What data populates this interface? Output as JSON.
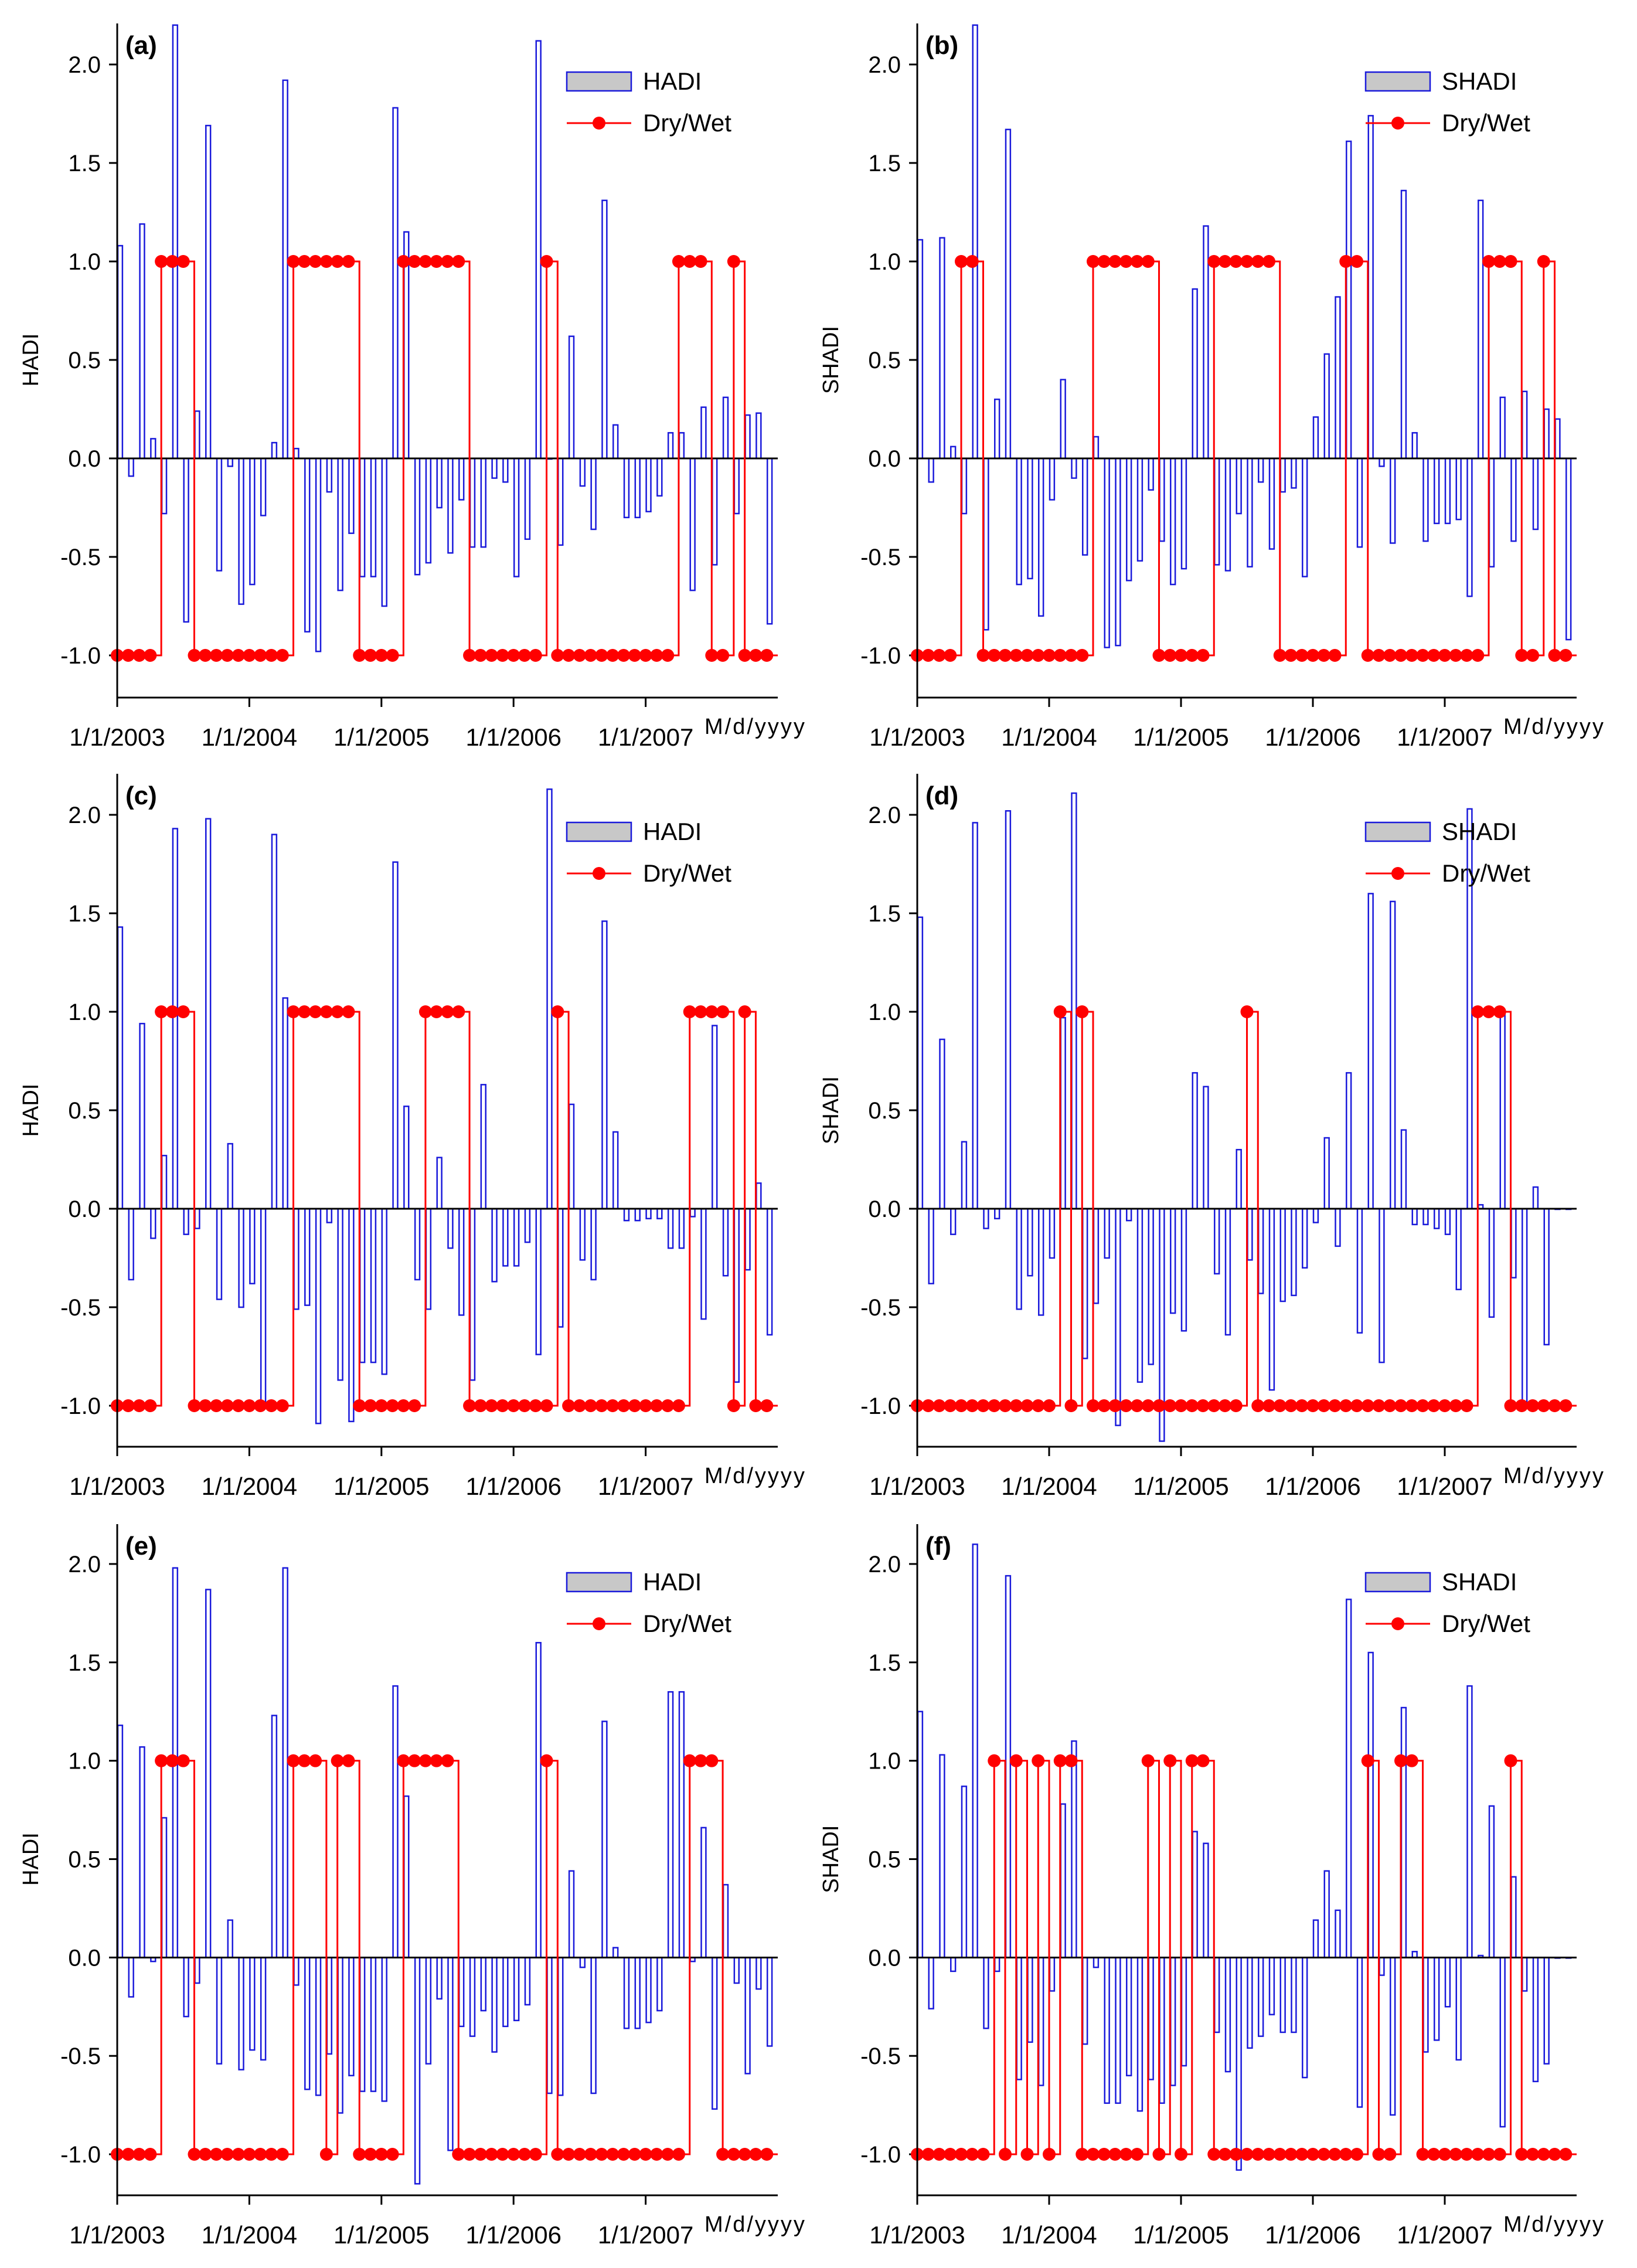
{
  "x_tick_labels": [
    "1/1/2003",
    "1/1/2004",
    "1/1/2005",
    "1/1/2006",
    "1/1/2007"
  ],
  "x_axis_unit": "M/d/yyyy",
  "y_tick_labels": [
    "2.0",
    "1.5",
    "1.0",
    "0.5",
    "0.0",
    "-0.5",
    "-1.0"
  ],
  "colors": {
    "bar_stroke": "#1a1adb",
    "bar_fill": "#ffffff",
    "legend_swatch_fill": "#c8c8c8",
    "drywet": "#ff0000",
    "axis": "#000000"
  },
  "chart_data": [
    {
      "panel": "(a)",
      "type": "bar",
      "ylabel": "HADI",
      "ylim": [
        -1.2,
        2.2
      ],
      "legend": {
        "bar": "HADI",
        "line": "Dry/Wet",
        "placement": "top-right"
      },
      "x": "monthly, Jan 2003 - Dec 2007",
      "values": [
        1.08,
        -0.09,
        1.19,
        0.1,
        -0.28,
        2.2,
        -0.83,
        0.24,
        1.69,
        -0.57,
        -0.04,
        -0.74,
        -0.64,
        -0.29,
        0.08,
        1.92,
        0.05,
        -0.88,
        -0.98,
        -0.17,
        -0.67,
        -0.38,
        -0.6,
        -0.6,
        -0.75,
        1.78,
        1.15,
        -0.59,
        -0.53,
        -0.25,
        -0.48,
        -0.21,
        -0.45,
        -0.45,
        -0.1,
        -0.12,
        -0.6,
        -0.41,
        2.12,
        0.0,
        -0.44,
        0.62,
        -0.14,
        -0.36,
        1.31,
        0.17,
        -0.3,
        -0.3,
        -0.27,
        -0.19,
        0.13,
        0.13,
        -0.67,
        0.26,
        -0.54,
        0.31,
        -0.28,
        0.22,
        0.23,
        -0.84
      ],
      "drywet": [
        -1,
        -1,
        -1,
        -1,
        1,
        1,
        1,
        -1,
        -1,
        -1,
        -1,
        -1,
        -1,
        -1,
        -1,
        -1,
        1,
        1,
        1,
        1,
        1,
        1,
        -1,
        -1,
        -1,
        -1,
        1,
        1,
        1,
        1,
        1,
        1,
        -1,
        -1,
        -1,
        -1,
        -1,
        -1,
        -1,
        1,
        -1,
        -1,
        -1,
        -1,
        -1,
        -1,
        -1,
        -1,
        -1,
        -1,
        -1,
        1,
        1,
        1,
        -1,
        -1,
        1,
        -1,
        -1,
        -1
      ]
    },
    {
      "panel": "(b)",
      "type": "bar",
      "ylabel": "SHADI",
      "ylim": [
        -1.2,
        2.2
      ],
      "legend": {
        "bar": "SHADI",
        "line": "Dry/Wet",
        "placement": "top-right"
      },
      "x": "monthly, Jan 2003 - Dec 2007",
      "values": [
        1.11,
        -0.12,
        1.12,
        0.06,
        -0.28,
        2.2,
        -0.87,
        0.3,
        1.67,
        -0.64,
        -0.61,
        -0.8,
        -0.21,
        0.4,
        -0.1,
        -0.49,
        0.11,
        -0.96,
        -0.95,
        -0.62,
        -0.52,
        -0.16,
        -0.42,
        -0.64,
        -0.56,
        0.86,
        1.18,
        -0.54,
        -0.57,
        -0.28,
        -0.55,
        -0.12,
        -0.46,
        -0.17,
        -0.15,
        -0.6,
        0.21,
        0.53,
        0.82,
        1.61,
        -0.45,
        1.74,
        -0.04,
        -0.43,
        1.36,
        0.13,
        -0.42,
        -0.33,
        -0.33,
        -0.31,
        -0.7,
        1.31,
        -0.55,
        0.31,
        -0.42,
        0.34,
        -0.36,
        0.25,
        0.2,
        -0.92
      ],
      "drywet": [
        -1,
        -1,
        -1,
        -1,
        1,
        1,
        -1,
        -1,
        -1,
        -1,
        -1,
        -1,
        -1,
        -1,
        -1,
        -1,
        1,
        1,
        1,
        1,
        1,
        1,
        -1,
        -1,
        -1,
        -1,
        -1,
        1,
        1,
        1,
        1,
        1,
        1,
        -1,
        -1,
        -1,
        -1,
        -1,
        -1,
        1,
        1,
        -1,
        -1,
        -1,
        -1,
        -1,
        -1,
        -1,
        -1,
        -1,
        -1,
        -1,
        1,
        1,
        1,
        -1,
        -1,
        1,
        -1,
        -1
      ]
    },
    {
      "panel": "(c)",
      "type": "bar",
      "ylabel": "HADI",
      "ylim": [
        -1.2,
        2.2
      ],
      "legend": {
        "bar": "HADI",
        "line": "Dry/Wet",
        "placement": "top-right"
      },
      "x": "monthly, Jan 2003 - Dec 2007",
      "values": [
        1.43,
        -0.36,
        0.94,
        -0.15,
        0.27,
        1.93,
        -0.13,
        -0.1,
        1.98,
        -0.46,
        0.33,
        -0.5,
        -0.38,
        -0.99,
        1.9,
        1.07,
        -0.51,
        -0.49,
        -1.09,
        -0.07,
        -0.87,
        -1.08,
        -0.78,
        -0.78,
        -0.84,
        1.76,
        0.52,
        -0.36,
        -0.51,
        0.26,
        -0.2,
        -0.54,
        -0.87,
        0.63,
        -0.37,
        -0.29,
        -0.29,
        -0.17,
        -0.74,
        2.13,
        -0.6,
        0.53,
        -0.26,
        -0.36,
        1.46,
        0.39,
        -0.06,
        -0.06,
        -0.05,
        -0.05,
        -0.2,
        -0.2,
        -0.04,
        -0.56,
        0.93,
        -0.34,
        -0.88,
        -0.31,
        0.13,
        -0.64
      ],
      "drywet": [
        -1,
        -1,
        -1,
        -1,
        1,
        1,
        1,
        -1,
        -1,
        -1,
        -1,
        -1,
        -1,
        -1,
        -1,
        -1,
        1,
        1,
        1,
        1,
        1,
        1,
        -1,
        -1,
        -1,
        -1,
        -1,
        -1,
        1,
        1,
        1,
        1,
        -1,
        -1,
        -1,
        -1,
        -1,
        -1,
        -1,
        -1,
        1,
        -1,
        -1,
        -1,
        -1,
        -1,
        -1,
        -1,
        -1,
        -1,
        -1,
        -1,
        1,
        1,
        1,
        1,
        -1,
        1,
        -1,
        -1
      ]
    },
    {
      "panel": "(d)",
      "type": "bar",
      "ylabel": "SHADI",
      "ylim": [
        -1.2,
        2.2
      ],
      "legend": {
        "bar": "SHADI",
        "line": "Dry/Wet",
        "placement": "top-right"
      },
      "x": "monthly, Jan 2003 - Dec 2007",
      "values": [
        1.48,
        -0.38,
        0.86,
        -0.13,
        0.34,
        1.96,
        -0.1,
        -0.05,
        2.02,
        -0.51,
        -0.34,
        -0.54,
        -0.25,
        0.97,
        2.11,
        -0.76,
        -0.48,
        -0.25,
        -1.1,
        -0.06,
        -0.88,
        -0.79,
        -1.18,
        -0.53,
        -0.62,
        0.69,
        0.62,
        -0.33,
        -0.64,
        0.3,
        -0.26,
        -0.43,
        -0.92,
        -0.47,
        -0.44,
        -0.3,
        -0.07,
        0.36,
        -0.19,
        0.69,
        -0.63,
        1.6,
        -0.78,
        1.56,
        0.4,
        -0.08,
        -0.08,
        -0.1,
        -0.13,
        -0.41,
        2.03,
        0.02,
        -0.55,
        1.0,
        -0.35,
        -0.98,
        0.11,
        -0.69,
        0.0,
        0.0
      ],
      "drywet": [
        -1,
        -1,
        -1,
        -1,
        -1,
        -1,
        -1,
        -1,
        -1,
        -1,
        -1,
        -1,
        -1,
        1,
        -1,
        1,
        -1,
        -1,
        -1,
        -1,
        -1,
        -1,
        -1,
        -1,
        -1,
        -1,
        -1,
        -1,
        -1,
        -1,
        1,
        -1,
        -1,
        -1,
        -1,
        -1,
        -1,
        -1,
        -1,
        -1,
        -1,
        -1,
        -1,
        -1,
        -1,
        -1,
        -1,
        -1,
        -1,
        -1,
        -1,
        1,
        1,
        1,
        -1,
        -1,
        -1,
        -1,
        -1,
        -1
      ]
    },
    {
      "panel": "(e)",
      "type": "bar",
      "ylabel": "HADI",
      "ylim": [
        -1.2,
        2.2
      ],
      "legend": {
        "bar": "HADI",
        "line": "Dry/Wet",
        "placement": "top-right"
      },
      "x": "monthly, Jan 2003 - Dec 2007",
      "values": [
        1.18,
        -0.2,
        1.07,
        -0.02,
        0.71,
        1.98,
        -0.3,
        -0.13,
        1.87,
        -0.54,
        0.19,
        -0.57,
        -0.47,
        -0.52,
        1.23,
        1.98,
        -0.14,
        -0.67,
        -0.7,
        -0.49,
        -0.79,
        -0.6,
        -0.68,
        -0.68,
        -0.73,
        1.38,
        0.82,
        -1.15,
        -0.54,
        -0.21,
        -0.98,
        -0.35,
        -0.4,
        -0.27,
        -0.48,
        -0.35,
        -0.32,
        -0.24,
        1.6,
        -0.69,
        -0.7,
        0.44,
        -0.05,
        -0.69,
        1.2,
        0.05,
        -0.36,
        -0.36,
        -0.33,
        -0.27,
        1.35,
        1.35,
        -0.02,
        0.66,
        -0.77,
        0.37,
        -0.13,
        -0.59,
        -0.16,
        -0.45
      ],
      "drywet": [
        -1,
        -1,
        -1,
        -1,
        1,
        1,
        1,
        -1,
        -1,
        -1,
        -1,
        -1,
        -1,
        -1,
        -1,
        -1,
        1,
        1,
        1,
        -1,
        1,
        1,
        -1,
        -1,
        -1,
        -1,
        1,
        1,
        1,
        1,
        1,
        -1,
        -1,
        -1,
        -1,
        -1,
        -1,
        -1,
        -1,
        1,
        -1,
        -1,
        -1,
        -1,
        -1,
        -1,
        -1,
        -1,
        -1,
        -1,
        -1,
        -1,
        1,
        1,
        1,
        -1,
        -1,
        -1,
        -1,
        -1
      ]
    },
    {
      "panel": "(f)",
      "type": "bar",
      "ylabel": "SHADI",
      "ylim": [
        -1.2,
        2.2
      ],
      "legend": {
        "bar": "SHADI",
        "line": "Dry/Wet",
        "placement": "top-right"
      },
      "x": "monthly, Jan 2003 - Dec 2007",
      "values": [
        1.25,
        -0.26,
        1.03,
        -0.07,
        0.87,
        2.1,
        -0.36,
        -0.07,
        1.94,
        -0.62,
        -0.43,
        -0.65,
        -0.17,
        0.78,
        1.1,
        -0.44,
        -0.05,
        -0.74,
        -0.74,
        -0.6,
        -0.78,
        -0.62,
        -0.74,
        -0.65,
        -0.55,
        0.64,
        0.58,
        -0.38,
        -0.58,
        -1.08,
        -0.46,
        -0.4,
        -0.29,
        -0.38,
        -0.38,
        -0.61,
        0.19,
        0.44,
        0.24,
        1.82,
        -0.76,
        1.55,
        -0.09,
        -0.8,
        1.27,
        0.03,
        -0.48,
        -0.42,
        -0.25,
        -0.52,
        1.38,
        0.01,
        0.77,
        -0.86,
        0.41,
        -0.17,
        -0.63,
        -0.54,
        0.0,
        0.0
      ],
      "drywet": [
        -1,
        -1,
        -1,
        -1,
        -1,
        -1,
        -1,
        1,
        -1,
        1,
        -1,
        1,
        -1,
        1,
        1,
        -1,
        -1,
        -1,
        -1,
        -1,
        -1,
        1,
        -1,
        1,
        -1,
        1,
        1,
        -1,
        -1,
        -1,
        -1,
        -1,
        -1,
        -1,
        -1,
        -1,
        -1,
        -1,
        -1,
        -1,
        -1,
        1,
        -1,
        -1,
        1,
        1,
        -1,
        -1,
        -1,
        -1,
        -1,
        -1,
        -1,
        -1,
        1,
        -1,
        -1,
        -1,
        -1,
        -1
      ]
    }
  ]
}
